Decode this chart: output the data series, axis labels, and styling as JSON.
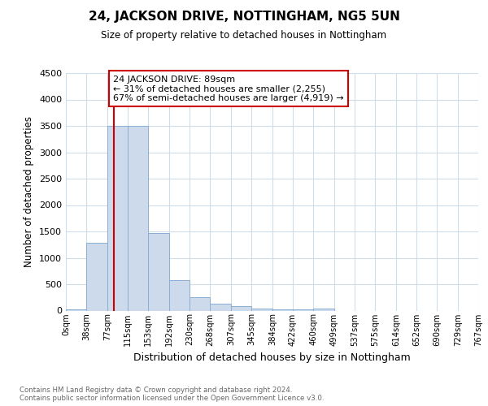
{
  "title": "24, JACKSON DRIVE, NOTTINGHAM, NG5 5UN",
  "subtitle": "Size of property relative to detached houses in Nottingham",
  "xlabel": "Distribution of detached houses by size in Nottingham",
  "ylabel": "Number of detached properties",
  "bin_edges": [
    0,
    38,
    77,
    115,
    153,
    192,
    230,
    268,
    307,
    345,
    384,
    422,
    460,
    499,
    537,
    575,
    614,
    652,
    690,
    729,
    767
  ],
  "bar_heights": [
    30,
    1280,
    3500,
    3500,
    1470,
    570,
    250,
    130,
    85,
    45,
    30,
    30,
    45,
    0,
    0,
    0,
    0,
    0,
    0,
    0
  ],
  "bar_color": "#ccdaec",
  "bar_edgecolor": "#8aafd4",
  "property_size": 89,
  "red_line_color": "#cc0000",
  "annotation_text": "24 JACKSON DRIVE: 89sqm\n← 31% of detached houses are smaller (2,255)\n67% of semi-detached houses are larger (4,919) →",
  "annotation_box_facecolor": "#ffffff",
  "annotation_box_edgecolor": "#cc0000",
  "ylim": [
    0,
    4500
  ],
  "yticks": [
    0,
    500,
    1000,
    1500,
    2000,
    2500,
    3000,
    3500,
    4000,
    4500
  ],
  "tick_labels": [
    "0sqm",
    "38sqm",
    "77sqm",
    "115sqm",
    "153sqm",
    "192sqm",
    "230sqm",
    "268sqm",
    "307sqm",
    "345sqm",
    "384sqm",
    "422sqm",
    "460sqm",
    "499sqm",
    "537sqm",
    "575sqm",
    "614sqm",
    "652sqm",
    "690sqm",
    "729sqm",
    "767sqm"
  ],
  "footer_text": "Contains HM Land Registry data © Crown copyright and database right 2024.\nContains public sector information licensed under the Open Government Licence v3.0.",
  "bg_color": "#ffffff",
  "plot_bg_color": "#ffffff",
  "grid_color": "#d0dce8"
}
